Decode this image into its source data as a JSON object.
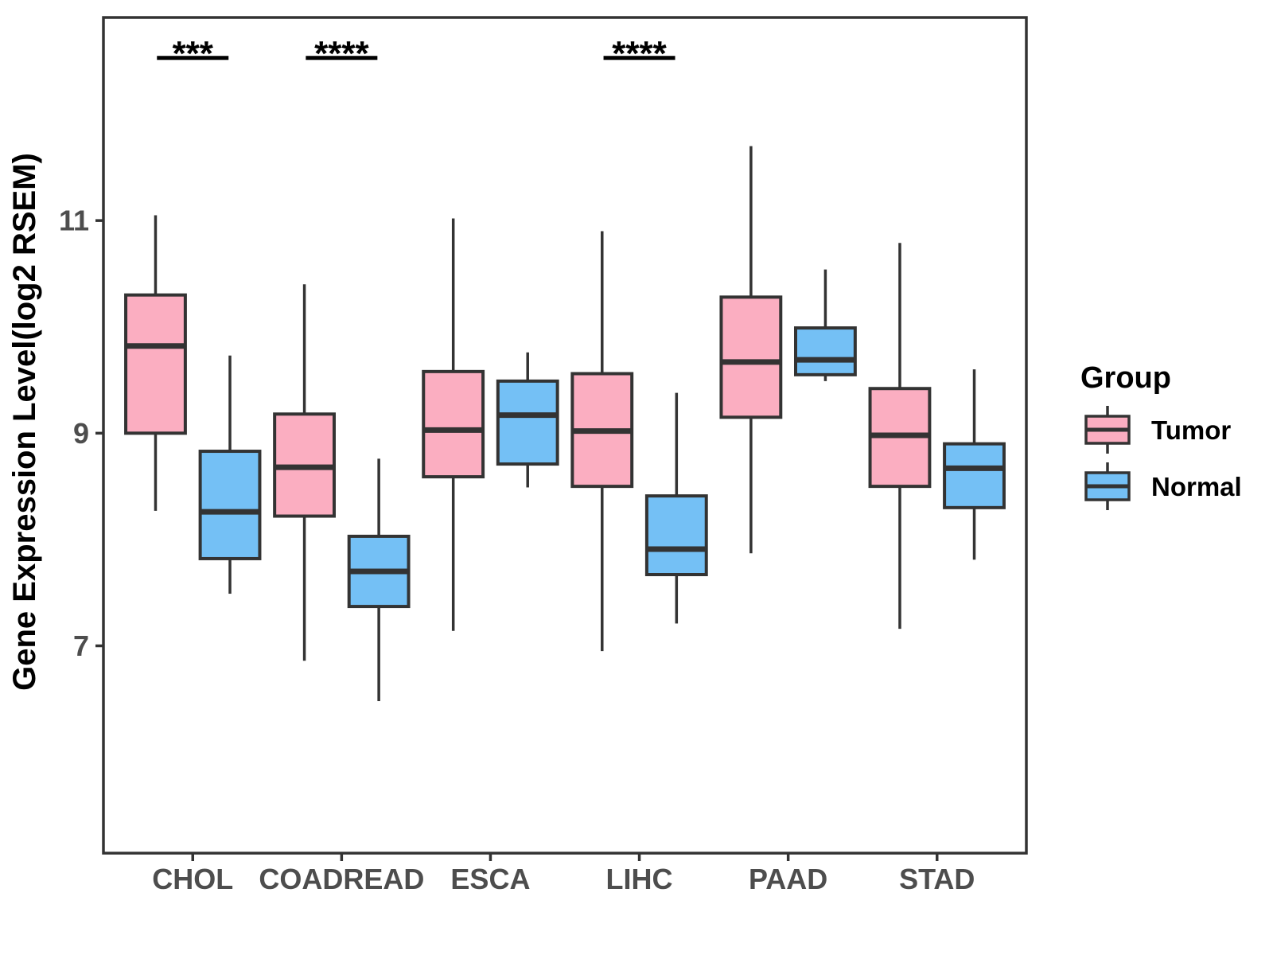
{
  "chart_data": {
    "type": "grouped_boxplot",
    "title": "",
    "xlabel": "",
    "ylabel": "Gene Expression Level(log2 RSEM)",
    "ylim": [
      5.05,
      12.91
    ],
    "yticks": [
      7,
      9,
      11
    ],
    "grid": false,
    "categories": [
      "CHOL",
      "COADREAD",
      "ESCA",
      "LIHC",
      "PAAD",
      "STAD"
    ],
    "legend": {
      "title": "Group",
      "position": "right",
      "entries": [
        {
          "label": "Tumor",
          "color": "#FBAEC1"
        },
        {
          "label": "Normal",
          "color": "#74C0F5"
        }
      ]
    },
    "series": [
      {
        "name": "Tumor",
        "color": "#FBAEC1",
        "boxes": [
          {
            "category": "CHOL",
            "whisker_low": 8.27,
            "q1": 9.0,
            "median": 9.82,
            "q3": 10.3,
            "whisker_high": 11.05
          },
          {
            "category": "COADREAD",
            "whisker_low": 6.86,
            "q1": 8.22,
            "median": 8.68,
            "q3": 9.18,
            "whisker_high": 10.4
          },
          {
            "category": "ESCA",
            "whisker_low": 7.14,
            "q1": 8.59,
            "median": 9.03,
            "q3": 9.58,
            "whisker_high": 11.02
          },
          {
            "category": "LIHC",
            "whisker_low": 6.95,
            "q1": 8.5,
            "median": 9.02,
            "q3": 9.56,
            "whisker_high": 10.9
          },
          {
            "category": "PAAD",
            "whisker_low": 7.87,
            "q1": 9.15,
            "median": 9.67,
            "q3": 10.28,
            "whisker_high": 11.7
          },
          {
            "category": "STAD",
            "whisker_low": 7.16,
            "q1": 8.5,
            "median": 8.98,
            "q3": 9.42,
            "whisker_high": 10.79
          }
        ]
      },
      {
        "name": "Normal",
        "color": "#74C0F5",
        "boxes": [
          {
            "category": "CHOL",
            "whisker_low": 7.49,
            "q1": 7.82,
            "median": 8.26,
            "q3": 8.83,
            "whisker_high": 9.73
          },
          {
            "category": "COADREAD",
            "whisker_low": 6.48,
            "q1": 7.37,
            "median": 7.7,
            "q3": 8.03,
            "whisker_high": 8.76
          },
          {
            "category": "ESCA",
            "whisker_low": 8.49,
            "q1": 8.71,
            "median": 9.17,
            "q3": 9.49,
            "whisker_high": 9.76
          },
          {
            "category": "LIHC",
            "whisker_low": 7.21,
            "q1": 7.67,
            "median": 7.91,
            "q3": 8.41,
            "whisker_high": 9.38
          },
          {
            "category": "PAAD",
            "whisker_low": 9.49,
            "q1": 9.55,
            "median": 9.69,
            "q3": 9.99,
            "whisker_high": 10.54
          },
          {
            "category": "STAD",
            "whisker_low": 7.81,
            "q1": 8.3,
            "median": 8.67,
            "q3": 8.9,
            "whisker_high": 9.6
          }
        ]
      }
    ],
    "annotations": [
      {
        "category": "CHOL",
        "label": "***",
        "line_y": 12.53
      },
      {
        "category": "COADREAD",
        "label": "****",
        "line_y": 12.53
      },
      {
        "category": "LIHC",
        "label": "****",
        "line_y": 12.53
      }
    ],
    "styles": {
      "box_border": "#333333",
      "axis_color": "#333333",
      "tick_label_color": "#4d4d4d",
      "annotation_color": "#000000"
    }
  }
}
